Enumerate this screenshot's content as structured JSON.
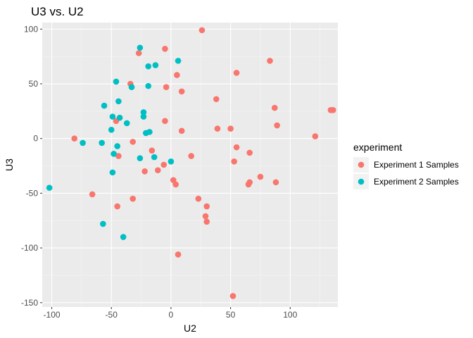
{
  "chart_data": {
    "type": "scatter",
    "title": "U3 vs. U2",
    "xlabel": "U2",
    "ylabel": "U3",
    "xlim": [
      -108,
      140
    ],
    "ylim": [
      -154,
      106
    ],
    "x_ticks": [
      -100,
      -50,
      0,
      50,
      100
    ],
    "y_ticks": [
      -150,
      -100,
      -50,
      0,
      50,
      100
    ],
    "grid": true,
    "panel_background": "#ebebeb",
    "legend": {
      "title": "experiment",
      "position": "right"
    },
    "series": [
      {
        "name": "Experiment 1 Samples",
        "color": "#f8766d",
        "points": [
          {
            "x": 26,
            "y": 99
          },
          {
            "x": -5,
            "y": 82
          },
          {
            "x": -27,
            "y": 78
          },
          {
            "x": 83,
            "y": 71
          },
          {
            "x": 5,
            "y": 58
          },
          {
            "x": 55,
            "y": 60
          },
          {
            "x": -34,
            "y": 50
          },
          {
            "x": -4,
            "y": 47
          },
          {
            "x": 9,
            "y": 43
          },
          {
            "x": 38,
            "y": 36
          },
          {
            "x": 87,
            "y": 28
          },
          {
            "x": 134,
            "y": 26
          },
          {
            "x": 136,
            "y": 26
          },
          {
            "x": -46,
            "y": 16
          },
          {
            "x": -5,
            "y": 16
          },
          {
            "x": 89,
            "y": 12
          },
          {
            "x": 39,
            "y": 9
          },
          {
            "x": 50,
            "y": 9
          },
          {
            "x": 9,
            "y": 7
          },
          {
            "x": 121,
            "y": 2
          },
          {
            "x": -81,
            "y": 0
          },
          {
            "x": -32,
            "y": -3
          },
          {
            "x": 55,
            "y": -8
          },
          {
            "x": -16,
            "y": -11
          },
          {
            "x": 66,
            "y": -13
          },
          {
            "x": 17,
            "y": -16
          },
          {
            "x": -44,
            "y": -16
          },
          {
            "x": 53,
            "y": -21
          },
          {
            "x": -6,
            "y": -24
          },
          {
            "x": -11,
            "y": -29
          },
          {
            "x": -22,
            "y": -30
          },
          {
            "x": 75,
            "y": -35
          },
          {
            "x": 2,
            "y": -38
          },
          {
            "x": 66,
            "y": -40
          },
          {
            "x": 65,
            "y": -42
          },
          {
            "x": 4,
            "y": -42
          },
          {
            "x": 88,
            "y": -40
          },
          {
            "x": -66,
            "y": -51
          },
          {
            "x": -32,
            "y": -55
          },
          {
            "x": 23,
            "y": -55
          },
          {
            "x": -45,
            "y": -62
          },
          {
            "x": 30,
            "y": -62
          },
          {
            "x": 29,
            "y": -71
          },
          {
            "x": 30,
            "y": -76
          },
          {
            "x": 6,
            "y": -106
          },
          {
            "x": 52,
            "y": -144
          }
        ]
      },
      {
        "name": "Experiment 2 Samples",
        "color": "#00bfc4",
        "points": [
          {
            "x": -26,
            "y": 83
          },
          {
            "x": 6,
            "y": 71
          },
          {
            "x": -13,
            "y": 67
          },
          {
            "x": -19,
            "y": 66
          },
          {
            "x": -46,
            "y": 52
          },
          {
            "x": -33,
            "y": 47
          },
          {
            "x": -19,
            "y": 48
          },
          {
            "x": -44,
            "y": 34
          },
          {
            "x": -56,
            "y": 30
          },
          {
            "x": -23,
            "y": 24
          },
          {
            "x": -23,
            "y": 20
          },
          {
            "x": -49,
            "y": 20
          },
          {
            "x": -43,
            "y": 19
          },
          {
            "x": -37,
            "y": 14
          },
          {
            "x": -50,
            "y": 8
          },
          {
            "x": -21,
            "y": 5
          },
          {
            "x": -18,
            "y": 6
          },
          {
            "x": -74,
            "y": -4
          },
          {
            "x": -58,
            "y": -4
          },
          {
            "x": -45,
            "y": -7
          },
          {
            "x": -48,
            "y": -14
          },
          {
            "x": -14,
            "y": -17
          },
          {
            "x": -26,
            "y": -18
          },
          {
            "x": 0,
            "y": -21
          },
          {
            "x": -49,
            "y": -31
          },
          {
            "x": -102,
            "y": -45
          },
          {
            "x": -57,
            "y": -78
          },
          {
            "x": -40,
            "y": -90
          }
        ]
      }
    ]
  }
}
